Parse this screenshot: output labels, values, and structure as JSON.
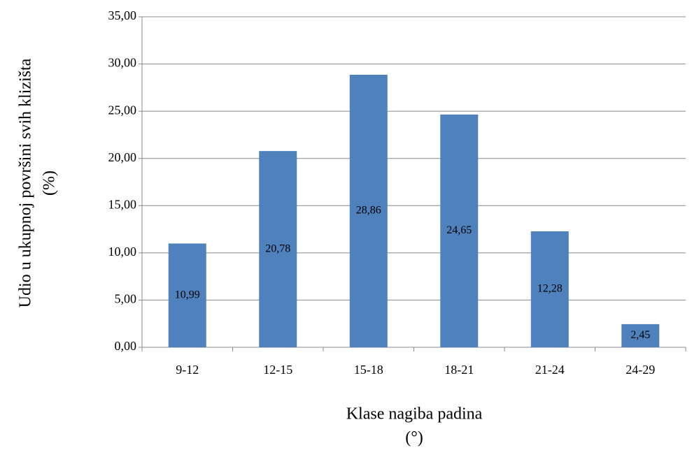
{
  "chart_data": {
    "type": "bar",
    "y_label": [
      "Udio u ukupnoj površini svih klizišta",
      "(%)"
    ],
    "x_label": [
      "Klase nagiba padina",
      "(°)"
    ],
    "categories": [
      "9-12",
      "12-15",
      "15-18",
      "18-21",
      "21-24",
      "24-29"
    ],
    "values": [
      10.99,
      20.78,
      28.86,
      24.65,
      12.28,
      2.45
    ],
    "value_labels": [
      "10,99",
      "20,78",
      "28,86",
      "24,65",
      "12,28",
      "2,45"
    ],
    "color": "#4f81bd",
    "ylim": [
      0,
      35
    ],
    "yticks": [
      {
        "value": 0,
        "label": "0,00"
      },
      {
        "value": 5,
        "label": "5,00"
      },
      {
        "value": 10,
        "label": "10,00"
      },
      {
        "value": 15,
        "label": "15,00"
      },
      {
        "value": 20,
        "label": "20,00"
      },
      {
        "value": 25,
        "label": "25,00"
      },
      {
        "value": 30,
        "label": "30,00"
      },
      {
        "value": 35,
        "label": "35,00"
      }
    ],
    "grid": true
  }
}
